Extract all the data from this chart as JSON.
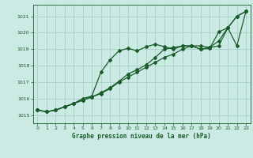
{
  "title": "Graphe pression niveau de la mer (hPa)",
  "bg_color": "#cceae4",
  "grid_color": "#aad4cc",
  "line_color": "#1a5c2a",
  "xlim": [
    -0.5,
    23.5
  ],
  "ylim": [
    1014.5,
    1021.7
  ],
  "yticks": [
    1015,
    1016,
    1017,
    1018,
    1019,
    1020,
    1021
  ],
  "xticks": [
    0,
    1,
    2,
    3,
    4,
    5,
    6,
    7,
    8,
    9,
    10,
    11,
    12,
    13,
    14,
    15,
    16,
    17,
    18,
    19,
    20,
    21,
    22,
    23
  ],
  "hours": [
    0,
    1,
    2,
    3,
    4,
    5,
    6,
    7,
    8,
    9,
    10,
    11,
    12,
    13,
    14,
    15,
    16,
    17,
    18,
    19,
    20,
    21,
    22,
    23
  ],
  "line1": [
    1015.3,
    1015.2,
    1015.3,
    1015.5,
    1015.7,
    1015.9,
    1016.1,
    1016.3,
    1016.6,
    1017.0,
    1017.3,
    1017.6,
    1017.9,
    1018.2,
    1018.5,
    1018.7,
    1019.0,
    1019.2,
    1019.2,
    1019.1,
    1019.5,
    1020.3,
    1021.0,
    1021.3
  ],
  "line2": [
    1015.3,
    1015.2,
    1015.3,
    1015.5,
    1015.7,
    1016.0,
    1016.15,
    1017.6,
    1018.35,
    1018.9,
    1019.05,
    1018.9,
    1019.15,
    1019.3,
    1019.15,
    1019.0,
    1019.2,
    1019.2,
    1019.0,
    1019.05,
    1020.05,
    1020.3,
    1019.2,
    1021.3
  ],
  "line3": [
    1015.3,
    1015.2,
    1015.3,
    1015.5,
    1015.7,
    1015.9,
    1016.1,
    1016.35,
    1016.65,
    1017.05,
    1017.5,
    1017.75,
    1018.05,
    1018.5,
    1019.0,
    1019.1,
    1019.2,
    1019.2,
    1019.0,
    1019.1,
    1019.2,
    1020.3,
    1021.0,
    1021.3
  ]
}
